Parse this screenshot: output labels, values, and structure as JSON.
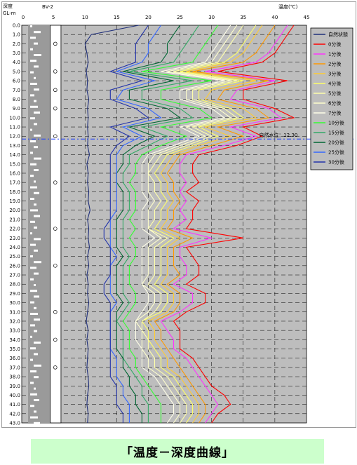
{
  "caption": "「温度－深度曲線」",
  "chart_data": {
    "type": "line",
    "title": "BV-2",
    "ylabel_line1": "深度",
    "ylabel_line2": "GL-m",
    "xlabel": "温度(℃)",
    "xlim": [
      0,
      45
    ],
    "ylim": [
      0,
      43
    ],
    "x_ticks": [
      "0",
      "5",
      "10",
      "15",
      "20",
      "25",
      "30",
      "35",
      "40",
      "45"
    ],
    "y_ticks": [
      "0.0",
      "1.0",
      "2.0",
      "3.0",
      "4.0",
      "5.0",
      "6.0",
      "7.0",
      "8.0",
      "9.0",
      "10.0",
      "11.0",
      "12.0",
      "13.0",
      "14.0",
      "15.0",
      "16.0",
      "17.0",
      "18.0",
      "19.0",
      "20.0",
      "21.0",
      "22.0",
      "23.0",
      "24.0",
      "25.0",
      "26.0",
      "27.0",
      "28.0",
      "29.0",
      "30.0",
      "31.0",
      "32.0",
      "33.0",
      "34.0",
      "35.0",
      "36.0",
      "37.0",
      "38.0",
      "39.0",
      "40.0",
      "41.0",
      "42.0",
      "43.0"
    ],
    "water_level": {
      "depth": 12.3,
      "label": "自然水位：12.30"
    },
    "grid": true,
    "legend_position": "right",
    "depth": [
      0,
      1,
      2,
      3,
      4,
      5,
      6,
      7,
      8,
      9,
      10,
      11,
      12,
      13,
      14,
      15,
      16,
      17,
      18,
      19,
      20,
      21,
      22,
      23,
      24,
      25,
      26,
      27,
      28,
      29,
      30,
      31,
      32,
      33,
      34,
      35,
      36,
      37,
      38,
      39,
      40,
      41,
      42,
      43
    ],
    "series": [
      {
        "name": "自然状態",
        "color": "#1f2f7a",
        "values": [
          18.5,
          11,
          10,
          10.3,
          10.5,
          10.2,
          10.4,
          10.3,
          10.6,
          10.4,
          10.5,
          10.4,
          10.5,
          10.4,
          10.7,
          10.3,
          10.5,
          10.4,
          10.6,
          10.5,
          10.8,
          10.4,
          10.6,
          10.5,
          10.7,
          10.4,
          10.6,
          10.3,
          10.5,
          10.4,
          10.6,
          10.4,
          10.2,
          10.5,
          10.3,
          10.5,
          10.4,
          10.3,
          10.5,
          10.6,
          10.4,
          10.3,
          10.5,
          10.4
        ]
      },
      {
        "name": "0分後",
        "color": "#ff0000",
        "values": [
          43,
          42,
          41,
          40,
          38,
          31,
          42,
          35,
          35,
          40,
          43,
          35,
          38,
          34,
          28,
          27,
          27,
          28,
          26,
          28,
          27,
          27,
          26,
          35,
          26,
          27,
          28,
          28,
          26,
          29,
          29,
          26,
          24,
          25,
          25,
          25,
          27,
          28,
          29,
          30,
          32,
          33,
          31,
          30
        ]
      },
      {
        "name": "1分後",
        "color": "#ff33ff",
        "values": [
          42,
          41,
          40,
          39,
          37,
          29,
          40,
          34,
          33,
          39,
          41,
          33,
          37,
          32,
          26,
          25,
          25,
          26,
          25,
          26,
          25,
          26,
          24,
          30,
          25,
          25,
          26,
          26,
          24,
          27,
          27,
          25,
          22,
          23,
          24,
          24,
          26,
          27,
          28,
          29,
          30,
          31,
          30,
          29
        ]
      },
      {
        "name": "2分後",
        "color": "#ff9900",
        "values": [
          40,
          39,
          38,
          37,
          35,
          27,
          39,
          32,
          31,
          37,
          39,
          31,
          35,
          30,
          25,
          24,
          23,
          24,
          24,
          25,
          24,
          24,
          23,
          27,
          24,
          24,
          24,
          25,
          23,
          25,
          25,
          24,
          21,
          22,
          22,
          23,
          24,
          25,
          26,
          27,
          28,
          29,
          29,
          28
        ]
      },
      {
        "name": "3分後",
        "color": "#ffcc33",
        "values": [
          38,
          37,
          36,
          35,
          33,
          26,
          37,
          30,
          29,
          35,
          37,
          29,
          33,
          28,
          24,
          23,
          22,
          23,
          23,
          24,
          23,
          23,
          22,
          25,
          23,
          23,
          23,
          23,
          22,
          24,
          24,
          23,
          20,
          21,
          21,
          22,
          23,
          23,
          25,
          26,
          27,
          28,
          28,
          27
        ]
      },
      {
        "name": "4分後",
        "color": "#ffff66",
        "values": [
          37,
          36,
          35,
          34,
          32,
          25,
          35,
          28,
          28,
          33,
          35,
          28,
          31,
          27,
          23,
          22,
          21,
          22,
          22,
          23,
          22,
          22,
          21,
          24,
          22,
          22,
          22,
          22,
          21,
          23,
          23,
          22,
          19,
          20,
          20,
          21,
          22,
          22,
          24,
          25,
          26,
          27,
          27,
          26
        ]
      },
      {
        "name": "5分後",
        "color": "#ffffaa",
        "values": [
          35,
          34,
          33,
          32,
          31,
          24,
          34,
          27,
          27,
          32,
          34,
          27,
          30,
          26,
          22,
          21,
          20,
          21,
          21,
          22,
          21,
          21,
          20,
          23,
          21,
          21,
          21,
          21,
          20,
          22,
          22,
          21,
          19,
          19,
          20,
          20,
          21,
          21,
          23,
          24,
          25,
          26,
          26,
          25
        ]
      },
      {
        "name": "6分後",
        "color": "#ffffcc",
        "values": [
          34,
          33,
          32,
          31,
          30,
          23,
          33,
          26,
          26,
          31,
          33,
          26,
          29,
          25,
          21,
          20,
          20,
          20,
          20,
          21,
          20,
          20,
          20,
          22,
          20,
          20,
          20,
          20,
          19,
          21,
          21,
          20,
          18,
          19,
          19,
          19,
          20,
          20,
          22,
          23,
          24,
          25,
          25,
          24
        ]
      },
      {
        "name": "7分後",
        "color": "#ffffe8",
        "values": [
          33,
          32,
          31,
          30,
          29,
          22,
          32,
          25,
          25,
          30,
          32,
          25,
          28,
          24,
          20,
          19,
          19,
          19,
          19,
          20,
          19,
          19,
          19,
          21,
          19,
          19,
          19,
          19,
          19,
          20,
          20,
          19,
          18,
          18,
          18,
          19,
          19,
          19,
          21,
          22,
          23,
          24,
          24,
          23
        ]
      },
      {
        "name": "10分後",
        "color": "#33ff33",
        "values": [
          31,
          30,
          29,
          28,
          27,
          19,
          30,
          22,
          22,
          28,
          30,
          22,
          26,
          22,
          19,
          18,
          18,
          17,
          18,
          18,
          18,
          17,
          18,
          17,
          18,
          18,
          17,
          17,
          17,
          18,
          18,
          17,
          16,
          17,
          17,
          17,
          18,
          18,
          19,
          20,
          21,
          22,
          22,
          22
        ]
      },
      {
        "name": "15分後",
        "color": "#33aa66",
        "values": [
          28,
          27,
          26,
          25,
          24,
          17,
          27,
          19,
          19,
          25,
          27,
          19,
          23,
          20,
          17,
          17,
          16,
          16,
          17,
          17,
          17,
          16,
          16,
          16,
          16,
          17,
          16,
          16,
          16,
          16,
          17,
          16,
          15,
          16,
          16,
          16,
          16,
          17,
          18,
          19,
          19,
          20,
          20,
          20
        ]
      },
      {
        "name": "20分後",
        "color": "#006633",
        "values": [
          25,
          24,
          23,
          23,
          22,
          16,
          24,
          17,
          17,
          23,
          25,
          17,
          21,
          18,
          16,
          16,
          15,
          15,
          16,
          16,
          16,
          15,
          15,
          15,
          15,
          16,
          15,
          15,
          15,
          15,
          16,
          15,
          15,
          15,
          15,
          15,
          16,
          16,
          17,
          17,
          18,
          18,
          19,
          19
        ]
      },
      {
        "name": "25分後",
        "color": "#3366ff",
        "values": [
          22,
          21,
          20,
          20,
          19,
          15,
          21,
          16,
          15,
          20,
          22,
          16,
          19,
          16,
          15,
          15,
          15,
          15,
          15,
          15,
          15,
          14,
          14,
          14,
          14,
          15,
          14,
          14,
          14,
          14,
          15,
          14,
          14,
          14,
          14,
          14,
          15,
          15,
          15,
          16,
          16,
          17,
          17,
          17
        ]
      },
      {
        "name": "30分後",
        "color": "#2233aa",
        "values": [
          20,
          19,
          18,
          18,
          18,
          14,
          19,
          14,
          14,
          18,
          20,
          14,
          17,
          15,
          14,
          14,
          14,
          14,
          14,
          14,
          14,
          14,
          13,
          13,
          14,
          14,
          14,
          14,
          13,
          13,
          14,
          14,
          14,
          14,
          14,
          14,
          14,
          14,
          14,
          15,
          15,
          15,
          16,
          16
        ]
      }
    ]
  }
}
